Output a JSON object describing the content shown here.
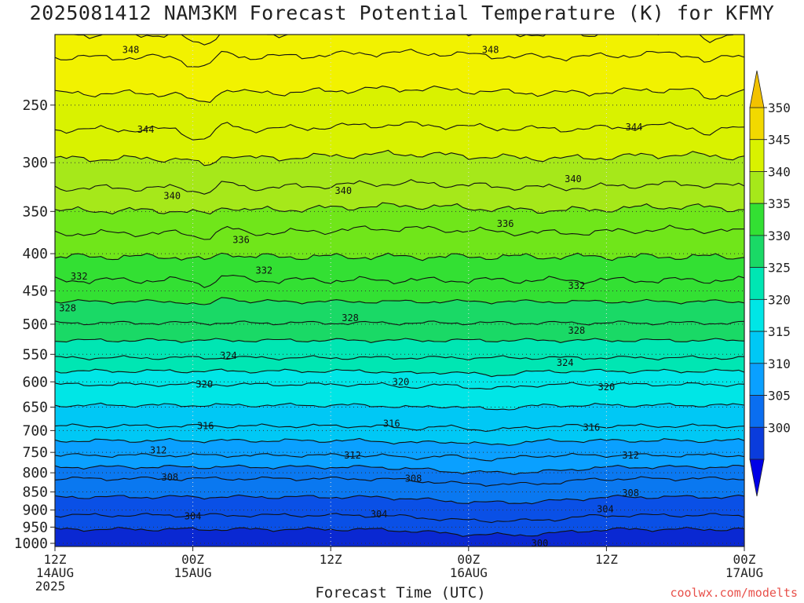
{
  "title": "2025081412 NAM3KM Forecast Potential Temperature (K) for KFMY",
  "credit": "coolwx.com/modelts",
  "chart_data": {
    "type": "contour-timeseries",
    "title": "2025081412 NAM3KM Forecast Potential Temperature (K) for KFMY",
    "xlabel": "Forecast Time (UTC)",
    "ylabel": "",
    "x_ticks": [
      {
        "hour": 0,
        "line1": "12Z",
        "line2": "14AUG",
        "line3": "2025"
      },
      {
        "hour": 12,
        "line1": "00Z",
        "line2": "15AUG",
        "line3": ""
      },
      {
        "hour": 24,
        "line1": "12Z",
        "line2": "",
        "line3": ""
      },
      {
        "hour": 36,
        "line1": "00Z",
        "line2": "16AUG",
        "line3": ""
      },
      {
        "hour": 48,
        "line1": "12Z",
        "line2": "",
        "line3": ""
      },
      {
        "hour": 60,
        "line1": "00Z",
        "line2": "17AUG",
        "line3": ""
      }
    ],
    "xlim_hours": [
      0,
      60
    ],
    "y_axis_pressure_hpa": [
      "250",
      "300",
      "350",
      "400",
      "450",
      "500",
      "550",
      "600",
      "650",
      "700",
      "750",
      "800",
      "850",
      "900",
      "950",
      "1000"
    ],
    "ylim_hpa": [
      1010,
      200
    ],
    "y_scale": "log-pressure",
    "contour_interval_k": 2,
    "contour_levels_k": [
      300,
      302,
      304,
      306,
      308,
      310,
      312,
      314,
      316,
      318,
      320,
      322,
      324,
      326,
      328,
      330,
      332,
      334,
      336,
      338,
      340,
      342,
      344,
      346,
      348,
      350
    ],
    "contour_labels": [
      {
        "value": "348",
        "hour": 6.6,
        "p": 210
      },
      {
        "value": "348",
        "hour": 37.9,
        "p": 210
      },
      {
        "value": "344",
        "hour": 7.9,
        "p": 270
      },
      {
        "value": "344",
        "hour": 50.4,
        "p": 268
      },
      {
        "value": "340",
        "hour": 10.2,
        "p": 333
      },
      {
        "value": "340",
        "hour": 25.1,
        "p": 328
      },
      {
        "value": "340",
        "hour": 45.1,
        "p": 316
      },
      {
        "value": "336",
        "hour": 16.2,
        "p": 383
      },
      {
        "value": "336",
        "hour": 39.2,
        "p": 364
      },
      {
        "value": "332",
        "hour": 2.1,
        "p": 430
      },
      {
        "value": "332",
        "hour": 18.2,
        "p": 422
      },
      {
        "value": "332",
        "hour": 45.4,
        "p": 443
      },
      {
        "value": "328",
        "hour": 1.1,
        "p": 475
      },
      {
        "value": "328",
        "hour": 25.7,
        "p": 490
      },
      {
        "value": "328",
        "hour": 45.4,
        "p": 510
      },
      {
        "value": "324",
        "hour": 15.1,
        "p": 552
      },
      {
        "value": "324",
        "hour": 44.4,
        "p": 565
      },
      {
        "value": "320",
        "hour": 13.0,
        "p": 605
      },
      {
        "value": "320",
        "hour": 30.1,
        "p": 600
      },
      {
        "value": "320",
        "hour": 48.0,
        "p": 610
      },
      {
        "value": "316",
        "hour": 13.1,
        "p": 690
      },
      {
        "value": "316",
        "hour": 29.3,
        "p": 685
      },
      {
        "value": "316",
        "hour": 46.7,
        "p": 693
      },
      {
        "value": "312",
        "hour": 9.0,
        "p": 745
      },
      {
        "value": "312",
        "hour": 25.9,
        "p": 757
      },
      {
        "value": "312",
        "hour": 50.1,
        "p": 757
      },
      {
        "value": "308",
        "hour": 10.0,
        "p": 812
      },
      {
        "value": "308",
        "hour": 31.2,
        "p": 815
      },
      {
        "value": "308",
        "hour": 50.1,
        "p": 853
      },
      {
        "value": "304",
        "hour": 12.0,
        "p": 918
      },
      {
        "value": "304",
        "hour": 28.2,
        "p": 912
      },
      {
        "value": "304",
        "hour": 47.9,
        "p": 898
      },
      {
        "value": "300",
        "hour": 42.2,
        "p": 1000
      }
    ],
    "colorbar": {
      "labels": [
        "350",
        "345",
        "340",
        "335",
        "330",
        "325",
        "320",
        "315",
        "310",
        "305",
        "300"
      ],
      "colors": [
        "#f2d900",
        "#d9f200",
        "#a6e81a",
        "#33e033",
        "#1ad966",
        "#00e6b3",
        "#00e6e6",
        "#00c8f5",
        "#0aa0ff",
        "#0a6ef0",
        "#0a3cdc"
      ],
      "top_arrow_color": "#f2c200",
      "bottom_arrow_color": "#0000e6"
    },
    "fill_bands": [
      {
        "max_k": 302,
        "color": "#0a28d2"
      },
      {
        "max_k": 306,
        "color": "#0a50e6"
      },
      {
        "max_k": 310,
        "color": "#0a78f0"
      },
      {
        "max_k": 314,
        "color": "#0aa0ff"
      },
      {
        "max_k": 318,
        "color": "#00c8f5"
      },
      {
        "max_k": 322,
        "color": "#00e6e6"
      },
      {
        "max_k": 326,
        "color": "#00e6b3"
      },
      {
        "max_k": 330,
        "color": "#1ad966"
      },
      {
        "max_k": 334,
        "color": "#33e033"
      },
      {
        "max_k": 338,
        "color": "#70e61a"
      },
      {
        "max_k": 342,
        "color": "#a6e81a"
      },
      {
        "max_k": 346,
        "color": "#d9f200"
      },
      {
        "max_k": 999,
        "color": "#f2f200"
      }
    ],
    "ground_color": "#a0522d",
    "grid": "dotted"
  }
}
